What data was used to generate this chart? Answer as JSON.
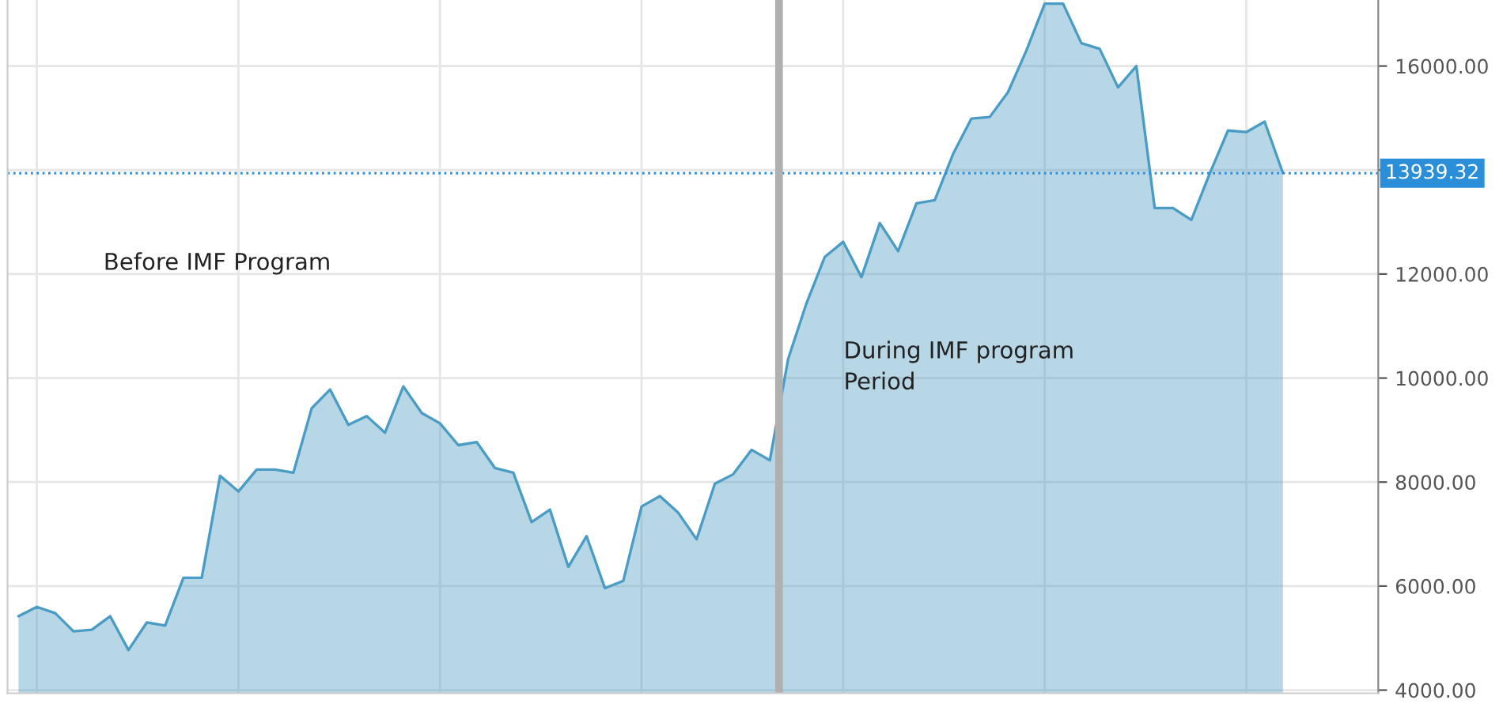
{
  "chart_data": {
    "type": "area",
    "categories": [
      null,
      null,
      null,
      null,
      null,
      null,
      null,
      null,
      null,
      null,
      null,
      null,
      null,
      null,
      null,
      null,
      null,
      null,
      null,
      null,
      null,
      null,
      null,
      null,
      null,
      null,
      null,
      null,
      null,
      null,
      null,
      null,
      null,
      null,
      null,
      null,
      null,
      null,
      null,
      null,
      null,
      null,
      null,
      null,
      null,
      null,
      null,
      null,
      null,
      null,
      null,
      null,
      null,
      null,
      null,
      null,
      null,
      null,
      null,
      null,
      null,
      null,
      null,
      null,
      null,
      null,
      null,
      null,
      null,
      null
    ],
    "series": [
      {
        "color": "#4a9cc4",
        "values": [
          5420,
          5600,
          5480,
          5130,
          5160,
          5420,
          4770,
          5300,
          5240,
          6160,
          6160,
          8120,
          7820,
          8240,
          8240,
          8180,
          9420,
          9780,
          9100,
          9270,
          8950,
          9840,
          9330,
          9130,
          8710,
          8770,
          8270,
          8180,
          7230,
          7470,
          6370,
          6960,
          5960,
          6100,
          7530,
          7730,
          7410,
          6900,
          7970,
          8150,
          8620,
          8420,
          10370,
          11440,
          12330,
          12620,
          11940,
          12980,
          12440,
          13360,
          13420,
          14310,
          14990,
          15020,
          15500,
          16300,
          17200,
          17200,
          16440,
          16330,
          15590,
          16000,
          13270,
          13270,
          13040,
          13930,
          14760,
          14730,
          14930,
          13940
        ]
      }
    ],
    "ylim": [
      3940,
      17270
    ],
    "yticks": [
      {
        "value": 4000,
        "label": "4000.00"
      },
      {
        "value": 6000,
        "label": "6000.00"
      },
      {
        "value": 8000,
        "label": "8000.00"
      },
      {
        "value": 10000,
        "label": "10000.00"
      },
      {
        "value": 12000,
        "label": "12000.00"
      },
      {
        "value": 14000,
        "label": null
      },
      {
        "value": 16000,
        "label": "16000.00"
      }
    ],
    "tick_labels": "y",
    "grid": true,
    "ref_lines": [
      {
        "axis": "y",
        "value": 13939.32,
        "label": "13939.32",
        "color": "#2a8fd8",
        "line_style": "dotted"
      }
    ],
    "annotations": [
      "Before IMF Program",
      "During IMF program\nPeriod"
    ]
  }
}
